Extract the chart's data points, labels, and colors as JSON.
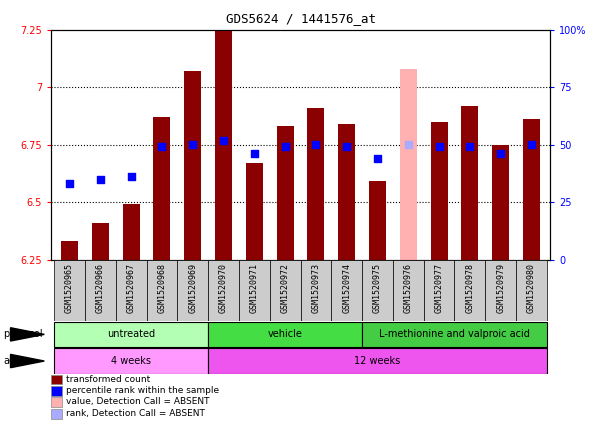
{
  "title": "GDS5624 / 1441576_at",
  "samples": [
    "GSM1520965",
    "GSM1520966",
    "GSM1520967",
    "GSM1520968",
    "GSM1520969",
    "GSM1520970",
    "GSM1520971",
    "GSM1520972",
    "GSM1520973",
    "GSM1520974",
    "GSM1520975",
    "GSM1520976",
    "GSM1520977",
    "GSM1520978",
    "GSM1520979",
    "GSM1520980"
  ],
  "bar_values": [
    6.33,
    6.41,
    6.49,
    6.87,
    7.07,
    7.25,
    6.67,
    6.83,
    6.91,
    6.84,
    6.59,
    7.08,
    6.85,
    6.92,
    6.75,
    6.86
  ],
  "bar_colors": [
    "#8b0000",
    "#8b0000",
    "#8b0000",
    "#8b0000",
    "#8b0000",
    "#8b0000",
    "#8b0000",
    "#8b0000",
    "#8b0000",
    "#8b0000",
    "#8b0000",
    "#ffb0b0",
    "#8b0000",
    "#8b0000",
    "#8b0000",
    "#8b0000"
  ],
  "dot_values_pct": [
    33,
    35,
    36,
    49,
    50,
    52,
    46,
    49,
    50,
    49,
    44,
    50,
    49,
    49,
    46,
    50
  ],
  "dot_colors": [
    "blue",
    "blue",
    "blue",
    "blue",
    "blue",
    "blue",
    "blue",
    "blue",
    "blue",
    "blue",
    "blue",
    "#aaaaff",
    "blue",
    "blue",
    "blue",
    "blue"
  ],
  "ylim_left": [
    6.25,
    7.25
  ],
  "ylim_right": [
    0,
    100
  ],
  "yticks_left": [
    6.25,
    6.5,
    6.75,
    7.0,
    7.25
  ],
  "ytick_labels_left": [
    "6.25",
    "6.5",
    "6.75",
    "7",
    "7.25"
  ],
  "yticks_right": [
    0,
    25,
    50,
    75,
    100
  ],
  "ytick_labels_right": [
    "0",
    "25",
    "50",
    "75",
    "100%"
  ],
  "hlines": [
    6.5,
    6.75,
    7.0
  ],
  "protocol_groups": [
    {
      "label": "untreated",
      "start": 0,
      "end": 4,
      "color": "#b3ffb3"
    },
    {
      "label": "vehicle",
      "start": 5,
      "end": 9,
      "color": "#44dd44"
    },
    {
      "label": "L-methionine and valproic acid",
      "start": 10,
      "end": 15,
      "color": "#44cc44"
    }
  ],
  "age_groups": [
    {
      "label": "4 weeks",
      "start": 0,
      "end": 4,
      "color": "#ff99ff"
    },
    {
      "label": "12 weeks",
      "start": 5,
      "end": 15,
      "color": "#ee55ee"
    }
  ],
  "legend_items": [
    {
      "label": "transformed count",
      "color": "#8b0000"
    },
    {
      "label": "percentile rank within the sample",
      "color": "blue"
    },
    {
      "label": "value, Detection Call = ABSENT",
      "color": "#ffb0b0"
    },
    {
      "label": "rank, Detection Call = ABSENT",
      "color": "#aaaaff"
    }
  ],
  "bar_width": 0.55,
  "dot_size": 25,
  "tick_label_bg": "#cccccc",
  "title_fontsize": 9,
  "tick_fontsize": 7,
  "sample_fontsize": 6
}
